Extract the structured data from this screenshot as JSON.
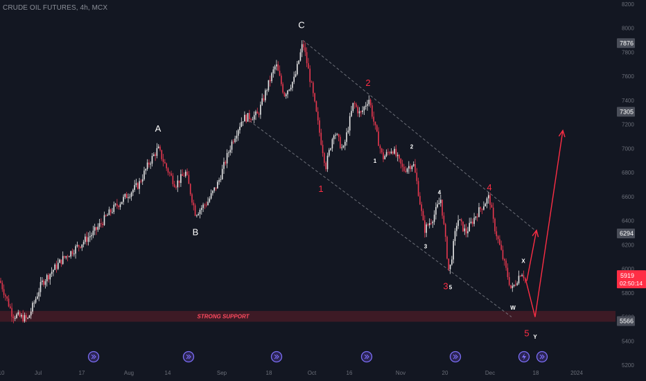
{
  "symbol_title": "CRUDE OIL FUTURES, 4h, MCX",
  "colors": {
    "background": "#131722",
    "up": "#e8e8e8",
    "down": "#e8384f",
    "axis_text": "#6b6f79",
    "channel": "#8a8d95",
    "support_band": "#3d1a25",
    "support_text": "#ff4a5f",
    "arrow": "#ff2e45",
    "wave_white": "#ffffff",
    "wave_red": "#ff2e45",
    "event_icon": "#7b6ef6"
  },
  "chart_data": {
    "type": "candlestick",
    "title": "CRUDE OIL FUTURES, 4h, MCX",
    "ylim": [
      5200,
      8200
    ],
    "y_ticks": [
      "5200",
      "5400",
      "5600",
      "5800",
      "6000",
      "6200",
      "6400",
      "6600",
      "6800",
      "7000",
      "7200",
      "7400",
      "7600",
      "7800",
      "8000",
      "8200"
    ],
    "x_ticks": [
      "10",
      "Jul",
      "17",
      "Aug",
      "14",
      "Sep",
      "18",
      "Oct",
      "16",
      "Nov",
      "20",
      "Dec",
      "18",
      "2024"
    ],
    "price_badges": [
      {
        "value": "7876",
        "style": "grey"
      },
      {
        "value": "7305",
        "style": "grey"
      },
      {
        "value": "6294",
        "style": "grey"
      },
      {
        "value": "5919",
        "style": "red",
        "countdown": "02:50:14"
      },
      {
        "value": "5566",
        "style": "grey"
      }
    ],
    "price_path": [
      {
        "t": 0,
        "p": 5900
      },
      {
        "t": 18,
        "p": 5620
      },
      {
        "t": 40,
        "p": 5580
      },
      {
        "t": 60,
        "p": 5880
      },
      {
        "t": 90,
        "p": 6080
      },
      {
        "t": 115,
        "p": 6200
      },
      {
        "t": 135,
        "p": 6300
      },
      {
        "t": 160,
        "p": 6480
      },
      {
        "t": 185,
        "p": 6620
      },
      {
        "t": 200,
        "p": 6700
      },
      {
        "t": 215,
        "p": 6880
      },
      {
        "t": 228,
        "p": 7000
      },
      {
        "t": 240,
        "p": 6840
      },
      {
        "t": 253,
        "p": 6700
      },
      {
        "t": 268,
        "p": 6800
      },
      {
        "t": 282,
        "p": 6460
      },
      {
        "t": 300,
        "p": 6560
      },
      {
        "t": 315,
        "p": 6720
      },
      {
        "t": 335,
        "p": 7060
      },
      {
        "t": 350,
        "p": 7250
      },
      {
        "t": 372,
        "p": 7280
      },
      {
        "t": 385,
        "p": 7500
      },
      {
        "t": 398,
        "p": 7700
      },
      {
        "t": 410,
        "p": 7450
      },
      {
        "t": 425,
        "p": 7580
      },
      {
        "t": 437,
        "p": 7880
      },
      {
        "t": 450,
        "p": 7500
      },
      {
        "t": 462,
        "p": 7100
      },
      {
        "t": 470,
        "p": 6850
      },
      {
        "t": 482,
        "p": 7150
      },
      {
        "t": 495,
        "p": 6980
      },
      {
        "t": 510,
        "p": 7380
      },
      {
        "t": 520,
        "p": 7280
      },
      {
        "t": 532,
        "p": 7420
      },
      {
        "t": 542,
        "p": 7150
      },
      {
        "t": 552,
        "p": 6920
      },
      {
        "t": 566,
        "p": 7000
      },
      {
        "t": 582,
        "p": 6820
      },
      {
        "t": 596,
        "p": 6880
      },
      {
        "t": 602,
        "p": 6700
      },
      {
        "t": 612,
        "p": 6320
      },
      {
        "t": 625,
        "p": 6430
      },
      {
        "t": 636,
        "p": 6580
      },
      {
        "t": 648,
        "p": 5960
      },
      {
        "t": 660,
        "p": 6420
      },
      {
        "t": 672,
        "p": 6300
      },
      {
        "t": 688,
        "p": 6460
      },
      {
        "t": 706,
        "p": 6600
      },
      {
        "t": 712,
        "p": 6380
      },
      {
        "t": 725,
        "p": 6100
      },
      {
        "t": 738,
        "p": 5820
      },
      {
        "t": 752,
        "p": 5980
      },
      {
        "t": 758,
        "p": 5919
      }
    ],
    "support": {
      "label": "STRONG SUPPORT",
      "from": 5560,
      "to": 5650
    },
    "channel": {
      "upper": [
        {
          "t": 437,
          "p": 7900
        },
        {
          "t": 772,
          "p": 6320
        }
      ],
      "lower": [
        {
          "t": 360,
          "p": 7230
        },
        {
          "t": 738,
          "p": 5600
        }
      ]
    },
    "projection": [
      {
        "t": 758,
        "p": 5919
      },
      {
        "t": 772,
        "p": 5600
      },
      {
        "t": 812,
        "p": 7150
      }
    ],
    "projection_short": [
      {
        "t": 760,
        "p": 5900
      },
      {
        "t": 774,
        "p": 6320
      }
    ],
    "wave_labels": [
      {
        "text": "A",
        "t": 228,
        "p": 7140,
        "color": "white",
        "size": "large"
      },
      {
        "text": "B",
        "t": 282,
        "p": 6280,
        "color": "white",
        "size": "large"
      },
      {
        "text": "C",
        "t": 435,
        "p": 8000,
        "color": "white",
        "size": "large"
      },
      {
        "text": "1",
        "t": 463,
        "p": 6640,
        "color": "red",
        "size": "large"
      },
      {
        "text": "2",
        "t": 531,
        "p": 7520,
        "color": "red",
        "size": "large"
      },
      {
        "text": "3",
        "t": 643,
        "p": 5830,
        "color": "red",
        "size": "large"
      },
      {
        "text": "4",
        "t": 706,
        "p": 6650,
        "color": "red",
        "size": "large"
      },
      {
        "text": "5",
        "t": 760,
        "p": 5440,
        "color": "red",
        "size": "large"
      },
      {
        "text": "1",
        "t": 541,
        "p": 6880,
        "color": "white",
        "size": "small"
      },
      {
        "text": "2",
        "t": 594,
        "p": 7000,
        "color": "white",
        "size": "small"
      },
      {
        "text": "3",
        "t": 614,
        "p": 6170,
        "color": "white",
        "size": "small"
      },
      {
        "text": "4",
        "t": 634,
        "p": 6620,
        "color": "white",
        "size": "small"
      },
      {
        "text": "5",
        "t": 650,
        "p": 5830,
        "color": "white",
        "size": "small"
      },
      {
        "text": "W",
        "t": 740,
        "p": 5660,
        "color": "white",
        "size": "small"
      },
      {
        "text": "X",
        "t": 755,
        "p": 6050,
        "color": "white",
        "size": "small"
      },
      {
        "text": "Y",
        "t": 772,
        "p": 5420,
        "color": "white",
        "size": "small"
      }
    ],
    "event_icons": [
      {
        "t": 135,
        "kind": "chevron"
      },
      {
        "t": 272,
        "kind": "chevron"
      },
      {
        "t": 399,
        "kind": "chevron"
      },
      {
        "t": 529,
        "kind": "chevron"
      },
      {
        "t": 657,
        "kind": "chevron"
      },
      {
        "t": 756,
        "kind": "bolt"
      },
      {
        "t": 782,
        "kind": "chevron"
      }
    ]
  }
}
